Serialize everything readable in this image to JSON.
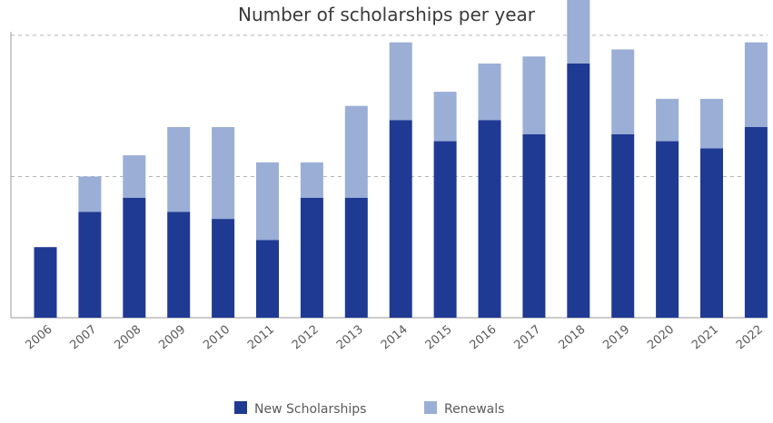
{
  "chart_data": {
    "type": "bar",
    "stacked": true,
    "title": "Number of scholarships per year",
    "categories": [
      "2006",
      "2007",
      "2008",
      "2009",
      "2010",
      "2011",
      "2012",
      "2013",
      "2014",
      "2015",
      "2016",
      "2017",
      "2018",
      "2019",
      "2020",
      "2021",
      "2022"
    ],
    "series": [
      {
        "name": "New Scholarships",
        "color": "#1f3a93",
        "values": [
          10,
          15,
          17,
          15,
          14,
          11,
          17,
          17,
          28,
          25,
          28,
          26,
          36,
          26,
          25,
          24,
          27
        ]
      },
      {
        "name": "Renewals",
        "color": "#9aaed6",
        "values": [
          0,
          5,
          6,
          12,
          13,
          11,
          5,
          13,
          11,
          7,
          8,
          11,
          9,
          12,
          6,
          7,
          12
        ]
      }
    ],
    "ylim": [
      0,
      45
    ],
    "grid": "horizontal dashed",
    "legend": "bottom-center"
  }
}
